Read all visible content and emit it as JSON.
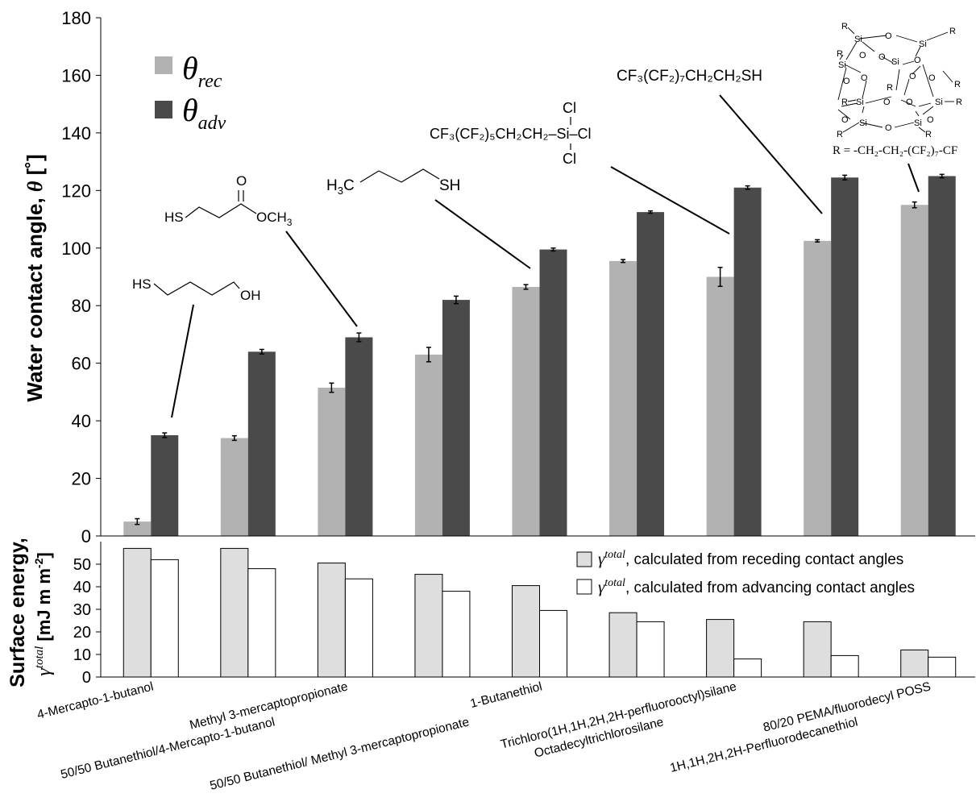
{
  "chart_data": [
    {
      "type": "bar",
      "ylabel_text": "Water contact angle, ",
      "ylabel_symbol": "θ",
      "ylabel_unit": " [˚]",
      "ylim": [
        0,
        180
      ],
      "yticks": [
        0,
        20,
        40,
        60,
        80,
        100,
        120,
        140,
        160,
        180
      ],
      "grid": false,
      "legend_position": "top-left",
      "categories": [
        "4-Mercapto-1-butanol",
        "50/50 Butanethiol/4-Mercapto-1-butanol",
        "Methyl 3-mercaptopropionate",
        "50/50 Butanethiol/ Methyl 3-mercaptopropionate",
        "1-Butanethiol",
        "Octadecyltrichlorosilane",
        "Trichloro(1H,1H,2H,2H-perfluorooctyl)silane",
        "1H,1H,2H,2H-Perfluorodecanethiol",
        "80/20 PEMA/fluorodecyl POSS"
      ],
      "series": [
        {
          "name": "θrec",
          "symbol": "θ",
          "subscript": "rec",
          "color": "#b2b2b2",
          "values": [
            5,
            34,
            51.5,
            63,
            86.5,
            95.5,
            90,
            102.5,
            115
          ],
          "errors": [
            1,
            0.8,
            1.6,
            2.5,
            0.8,
            0.5,
            3.3,
            0.4,
            1
          ]
        },
        {
          "name": "θadv",
          "symbol": "θ",
          "subscript": "adv",
          "color": "#4a4a4a",
          "values": [
            35,
            64,
            69,
            82,
            99.5,
            112.5,
            121,
            124.5,
            125
          ],
          "errors": [
            0.8,
            0.8,
            1.5,
            1.3,
            0.5,
            0.4,
            0.6,
            0.8,
            0.6
          ]
        }
      ]
    },
    {
      "type": "bar",
      "ylabel_line1": "Surface energy,",
      "ylabel_symbol": "γ",
      "ylabel_sup": "total",
      "ylabel_unit": "[mJ m",
      "ylabel_unit_sup": "-2",
      "ylabel_unit_end": "]",
      "ylim": [
        0,
        60
      ],
      "yticks": [
        0,
        10,
        20,
        30,
        40,
        50
      ],
      "grid": false,
      "legend_position": "top-right",
      "series": [
        {
          "name": "γtotal, calculated from receding contact angles",
          "symbol": "γ",
          "sup": "total",
          "text": ", calculated from receding contact angles",
          "color": "#dedede",
          "values": [
            57,
            57,
            50.5,
            45.5,
            40.5,
            28.5,
            25.5,
            24.5,
            12
          ]
        },
        {
          "name": "γtotal, calculated from advancing contact angles",
          "symbol": "γ",
          "sup": "total",
          "text": ", calculated from advancing contact angles",
          "color": "#ffffff",
          "values": [
            52,
            48,
            43.5,
            38,
            29.5,
            24.5,
            8,
            9.5,
            8.8
          ]
        }
      ]
    }
  ],
  "structures": {
    "mercaptobutanol": {
      "hs": "HS",
      "oh": "OH"
    },
    "methyl_propionate": {
      "hs": "HS",
      "o": "O",
      "och3": "OCH",
      "och3_sub": "3"
    },
    "butanethiol": {
      "h3c_h": "H",
      "h3c_sub": "3",
      "h3c_c": "C",
      "sh": "SH"
    },
    "fluorooctylsilane": {
      "chain": "CF₃(CF₂)₅CH₂CH₂–Si–Cl",
      "cl_top": "Cl",
      "cl_bottom": "Cl"
    },
    "fluorodecanethiol": {
      "formula": "CF₃(CF₂)₇CH₂CH₂SH"
    },
    "poss": {
      "si": "Si",
      "o": "O",
      "r": "R",
      "r_def": "R = -CH₂-CH₂-(CF₂)₇-CF"
    }
  }
}
